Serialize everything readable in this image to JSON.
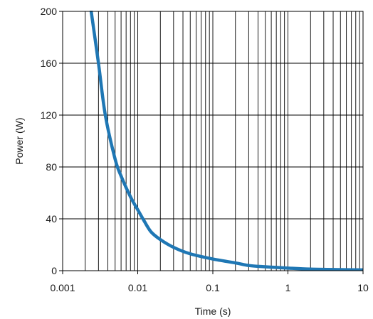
{
  "chart_data": {
    "type": "line",
    "xlabel": "Time (s)",
    "ylabel": "Power  (W)",
    "x_scale": "log",
    "xlim": [
      0.001,
      10
    ],
    "ylim": [
      0,
      200
    ],
    "grid": true,
    "x_ticks": [
      {
        "value": 0.001,
        "label": "0.001"
      },
      {
        "value": 0.01,
        "label": "0.01"
      },
      {
        "value": 0.1,
        "label": "0.1"
      },
      {
        "value": 1,
        "label": "1"
      },
      {
        "value": 10,
        "label": "10"
      }
    ],
    "y_ticks": [
      {
        "value": 0,
        "label": "0"
      },
      {
        "value": 40,
        "label": "40"
      },
      {
        "value": 80,
        "label": "80"
      },
      {
        "value": 120,
        "label": "120"
      },
      {
        "value": 160,
        "label": "160"
      },
      {
        "value": 200,
        "label": "200"
      }
    ],
    "series": [
      {
        "color": "#1f77b4",
        "points": [
          [
            0.0024,
            200
          ],
          [
            0.003,
            160
          ],
          [
            0.0037,
            120
          ],
          [
            0.005,
            86
          ],
          [
            0.006,
            73
          ],
          [
            0.008,
            57
          ],
          [
            0.01,
            47
          ],
          [
            0.012,
            39
          ],
          [
            0.015,
            30
          ],
          [
            0.02,
            24
          ],
          [
            0.03,
            18
          ],
          [
            0.05,
            13
          ],
          [
            0.1,
            9
          ],
          [
            0.2,
            6
          ],
          [
            0.3,
            4
          ],
          [
            0.5,
            3
          ],
          [
            1,
            2
          ],
          [
            2,
            1.2
          ],
          [
            5,
            0.8
          ],
          [
            10,
            0.6
          ]
        ]
      }
    ]
  }
}
